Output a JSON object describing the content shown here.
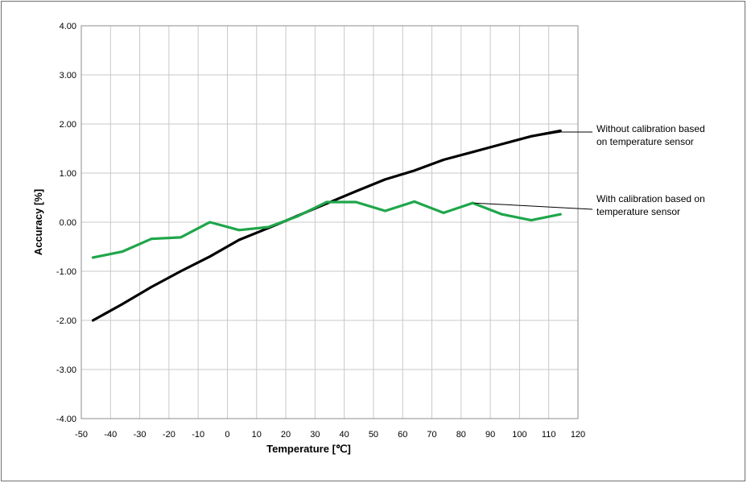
{
  "chart_data": {
    "type": "line",
    "title": "",
    "xlabel": "Temperature [℃]",
    "ylabel": "Accuracy [%]",
    "xlim": [
      -50,
      120
    ],
    "ylim": [
      -4,
      4
    ],
    "x_ticks": [
      -50,
      -40,
      -30,
      -20,
      -10,
      0,
      10,
      20,
      30,
      40,
      50,
      60,
      70,
      80,
      90,
      100,
      110,
      120
    ],
    "x_tick_labels": [
      "-50",
      "-40",
      "-30",
      "-20",
      "-10",
      "0",
      "10",
      "20",
      "30",
      "40",
      "50",
      "60",
      "70",
      "80",
      "90",
      "100",
      "110",
      "120"
    ],
    "y_ticks": [
      -4,
      -3,
      -2,
      -1,
      0,
      1,
      2,
      3,
      4
    ],
    "y_tick_labels": [
      "-4.00",
      "-3.00",
      "-2.00",
      "-1.00",
      "0.00",
      "1.00",
      "2.00",
      "3.00",
      "4.00"
    ],
    "grid": true,
    "series": [
      {
        "color": "#000000",
        "annotation": [
          "Without calibration based",
          "on temperature sensor"
        ],
        "x": [
          -46,
          -36,
          -26,
          -16,
          -6,
          4,
          14,
          24,
          34,
          44,
          54,
          64,
          74,
          84,
          94,
          104,
          114
        ],
        "y": [
          -2.0,
          -1.67,
          -1.32,
          -1.0,
          -0.7,
          -0.36,
          -0.12,
          0.13,
          0.38,
          0.63,
          0.87,
          1.05,
          1.27,
          1.43,
          1.59,
          1.75,
          1.86
        ]
      },
      {
        "color": "#1fa64a",
        "annotation": [
          "With calibration based on",
          "temperature sensor"
        ],
        "x": [
          -46,
          -36,
          -26,
          -16,
          -6,
          4,
          14,
          24,
          34,
          44,
          54,
          64,
          74,
          84,
          94,
          104,
          114
        ],
        "y": [
          -0.72,
          -0.6,
          -0.34,
          -0.31,
          0.0,
          -0.16,
          -0.1,
          0.12,
          0.41,
          0.41,
          0.23,
          0.42,
          0.19,
          0.39,
          0.16,
          0.04,
          0.16
        ]
      }
    ]
  }
}
